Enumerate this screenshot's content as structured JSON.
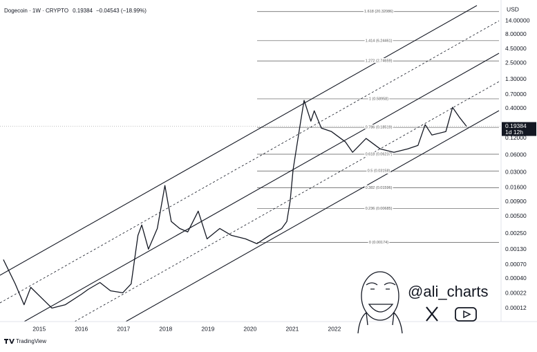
{
  "chart_data": {
    "type": "line",
    "title": "Dogecoin · 1W · CRYPTO",
    "last_value": 0.19384,
    "change_label": "−0.04543 (−18.99%)",
    "countdown": "1d 12h",
    "y_axis_label": "USD",
    "color": "#131722",
    "log_y": true,
    "grid": false,
    "xlim": [
      2014.07,
      2025.95
    ],
    "xticks": [
      2015,
      2016,
      2017,
      2018,
      2019,
      2020,
      2021,
      2022
    ],
    "ylim": [
      7e-05,
      26
    ],
    "yticks": [
      {
        "value": 14,
        "label": "14.00000"
      },
      {
        "value": 8,
        "label": "8.00000"
      },
      {
        "value": 4.5,
        "label": "4.50000"
      },
      {
        "value": 2.5,
        "label": "2.50000"
      },
      {
        "value": 1.3,
        "label": "1.30000"
      },
      {
        "value": 0.7,
        "label": "0.70000"
      },
      {
        "value": 0.4,
        "label": "0.40000"
      },
      {
        "value": 0.12,
        "label": "0.12000"
      },
      {
        "value": 0.06,
        "label": "0.06000"
      },
      {
        "value": 0.03,
        "label": "0.03000"
      },
      {
        "value": 0.016,
        "label": "0.01600"
      },
      {
        "value": 0.009,
        "label": "0.00900"
      },
      {
        "value": 0.005,
        "label": "0.00500"
      },
      {
        "value": 0.0025,
        "label": "0.00250"
      },
      {
        "value": 0.0013,
        "label": "0.00130"
      },
      {
        "value": 0.0007,
        "label": "0.00070"
      },
      {
        "value": 0.0004,
        "label": "0.00040"
      },
      {
        "value": 0.00022,
        "label": "0.00022"
      },
      {
        "value": 0.00012,
        "label": "0.00012"
      }
    ],
    "fib_levels": [
      {
        "value": 20.32086,
        "label": "1.618 (20.32086)"
      },
      {
        "value": 6.24461,
        "label": "1.414 (6.24461)"
      },
      {
        "value": 2.74659,
        "label": "1.272 (2.74659)"
      },
      {
        "value": 0.58958,
        "label": "1 (0.58958)"
      },
      {
        "value": 0.18519,
        "label": "0.786 (0.18519)"
      },
      {
        "value": 0.06237,
        "label": "0.618 (0.06237)"
      },
      {
        "value": 0.03158,
        "label": "0.5 (0.03158)"
      },
      {
        "value": 0.01596,
        "label": "0.382 (0.01596)"
      },
      {
        "value": 0.00685,
        "label": "0.236 (0.00685)"
      },
      {
        "value": 0.00174,
        "label": "0 (0.00174)"
      }
    ],
    "x": [
      2014.15,
      2014.43,
      2014.64,
      2014.8,
      2015.13,
      2015.3,
      2015.62,
      2016.0,
      2016.16,
      2016.44,
      2016.69,
      2016.98,
      2017.18,
      2017.34,
      2017.43,
      2017.59,
      2017.8,
      2017.98,
      2018.13,
      2018.33,
      2018.52,
      2018.77,
      2018.98,
      2019.28,
      2019.56,
      2019.89,
      2020.16,
      2020.46,
      2020.75,
      2020.87,
      2020.95,
      2021.02,
      2021.11,
      2021.2,
      2021.28,
      2021.44,
      2021.52,
      2021.69,
      2021.93,
      2022.26,
      2022.43,
      2022.75,
      2023.08,
      2023.41,
      2023.74,
      2023.98,
      2024.15,
      2024.31,
      2024.64,
      2024.8,
      2024.97,
      2025.13
    ],
    "values": [
      0.000866,
      0.000324,
      0.000139,
      0.000281,
      0.000161,
      0.000121,
      0.000139,
      0.000212,
      0.000258,
      0.000342,
      0.000244,
      0.000225,
      0.000324,
      0.00231,
      0.00353,
      0.00132,
      0.00306,
      0.0175,
      0.00406,
      0.00306,
      0.00266,
      0.00618,
      0.00201,
      0.00306,
      0.00231,
      0.00201,
      0.00165,
      0.00231,
      0.00306,
      0.00406,
      0.00943,
      0.0334,
      0.0892,
      0.238,
      0.554,
      0.238,
      0.363,
      0.18,
      0.156,
      0.1026,
      0.0674,
      0.118,
      0.0775,
      0.0674,
      0.0775,
      0.0892,
      0.207,
      0.136,
      0.156,
      0.418,
      0.274,
      0.19384
    ]
  },
  "watermark": {
    "handle": "@ali_charts"
  },
  "footer": {
    "brand": "TradingView"
  }
}
